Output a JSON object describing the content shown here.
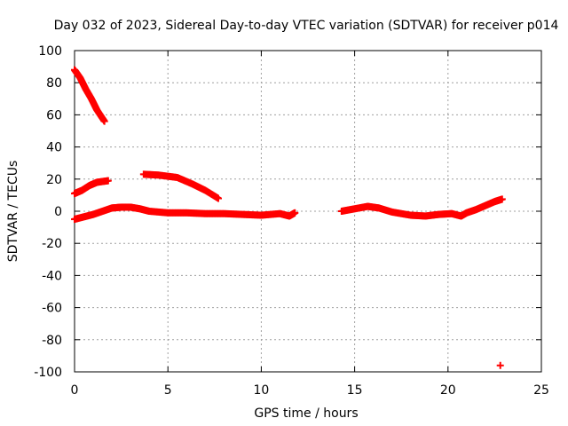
{
  "chart_data": {
    "type": "scatter",
    "title": "Day 032 of 2023, Sidereal Day-to-day VTEC variation (SDTVAR) for receiver p014",
    "xlabel": "GPS time / hours",
    "ylabel": "SDTVAR / TECUs",
    "xlim": [
      0,
      25
    ],
    "ylim": [
      -100,
      100
    ],
    "xticks": [
      "0",
      "5",
      "10",
      "15",
      "20",
      "25"
    ],
    "yticks": [
      "-100",
      "-80",
      "-60",
      "-40",
      "-20",
      "0",
      "20",
      "40",
      "60",
      "80",
      "100"
    ],
    "grid": true,
    "marker": "plus",
    "series_color": "#ff0000",
    "series": [
      {
        "name": "arc-steep-decline",
        "points": [
          [
            0.0,
            88
          ],
          [
            0.3,
            83
          ],
          [
            0.6,
            76
          ],
          [
            0.9,
            70
          ],
          [
            1.2,
            63
          ],
          [
            1.6,
            56
          ]
        ]
      },
      {
        "name": "arc-low-rise",
        "points": [
          [
            0.0,
            11
          ],
          [
            0.4,
            13
          ],
          [
            0.8,
            16
          ],
          [
            1.2,
            18
          ],
          [
            1.8,
            19
          ]
        ]
      },
      {
        "name": "arc-decline-mid",
        "points": [
          [
            3.7,
            23
          ],
          [
            4.5,
            22.5
          ],
          [
            5.5,
            21
          ],
          [
            6.3,
            17
          ],
          [
            7.0,
            13
          ],
          [
            7.7,
            8
          ]
        ]
      },
      {
        "name": "arc-near-zero-1",
        "points": [
          [
            0.0,
            -5
          ],
          [
            0.5,
            -3.5
          ],
          [
            1.0,
            -2
          ],
          [
            1.5,
            0
          ],
          [
            2.0,
            2
          ],
          [
            2.5,
            2.5
          ],
          [
            3.0,
            2.5
          ],
          [
            3.5,
            1.5
          ],
          [
            4.0,
            0
          ],
          [
            5.0,
            -1
          ],
          [
            6.0,
            -1
          ],
          [
            7.0,
            -1.5
          ],
          [
            8.0,
            -1.5
          ],
          [
            9.0,
            -2
          ],
          [
            10.0,
            -2.5
          ],
          [
            11.0,
            -1.5
          ],
          [
            11.5,
            -3
          ],
          [
            11.8,
            -1
          ]
        ]
      },
      {
        "name": "arc-near-zero-2",
        "points": [
          [
            14.3,
            0
          ],
          [
            15.0,
            1.5
          ],
          [
            15.7,
            3
          ],
          [
            16.3,
            2
          ],
          [
            17.0,
            -0.5
          ],
          [
            18.0,
            -2.5
          ],
          [
            18.8,
            -3
          ],
          [
            19.5,
            -2
          ],
          [
            20.2,
            -1.5
          ],
          [
            20.7,
            -3
          ],
          [
            21.0,
            -1
          ],
          [
            21.5,
            1
          ],
          [
            22.0,
            3.5
          ],
          [
            22.5,
            6
          ],
          [
            22.9,
            7.5
          ]
        ]
      },
      {
        "name": "outlier",
        "points": [
          [
            22.8,
            -96
          ]
        ]
      }
    ]
  }
}
